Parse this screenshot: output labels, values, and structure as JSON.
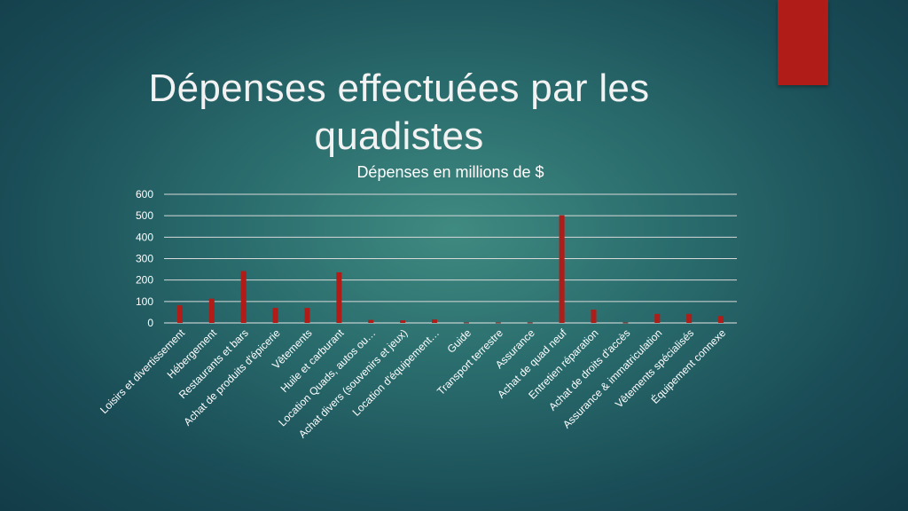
{
  "slide": {
    "title_line1": "Dépenses effectuées par les",
    "title_line2": "quadistes",
    "accent_color": "#b01c17"
  },
  "chart_data": {
    "type": "bar",
    "title": "Dépenses en millions de $",
    "xlabel": "",
    "ylabel": "",
    "ylim": [
      0,
      600
    ],
    "yticks": [
      0,
      100,
      200,
      300,
      400,
      500,
      600
    ],
    "grid": true,
    "legend": "none",
    "bar_color": "#b01c17",
    "categories": [
      "Loisirs et divertissement",
      "Hébergement",
      "Restaurants et bars",
      "Achat de produits d'épicerie",
      "Vêtements",
      "Huile et carburant",
      "Location Quads, autos ou…",
      "Achat divers (souvenirs et jeux)",
      "Location d'équipement…",
      "Guide",
      "Transport terrestre",
      "Assurance",
      "Achat de quad neuf",
      "Entretien réparation",
      "Achat de droits d'accès",
      "Assurance & immatriculation",
      "Vêtements spécialisés",
      "Équipement connexe"
    ],
    "values": [
      82,
      113,
      242,
      70,
      70,
      236,
      14,
      12,
      16,
      2,
      2,
      2,
      502,
      62,
      2,
      42,
      42,
      32
    ]
  }
}
